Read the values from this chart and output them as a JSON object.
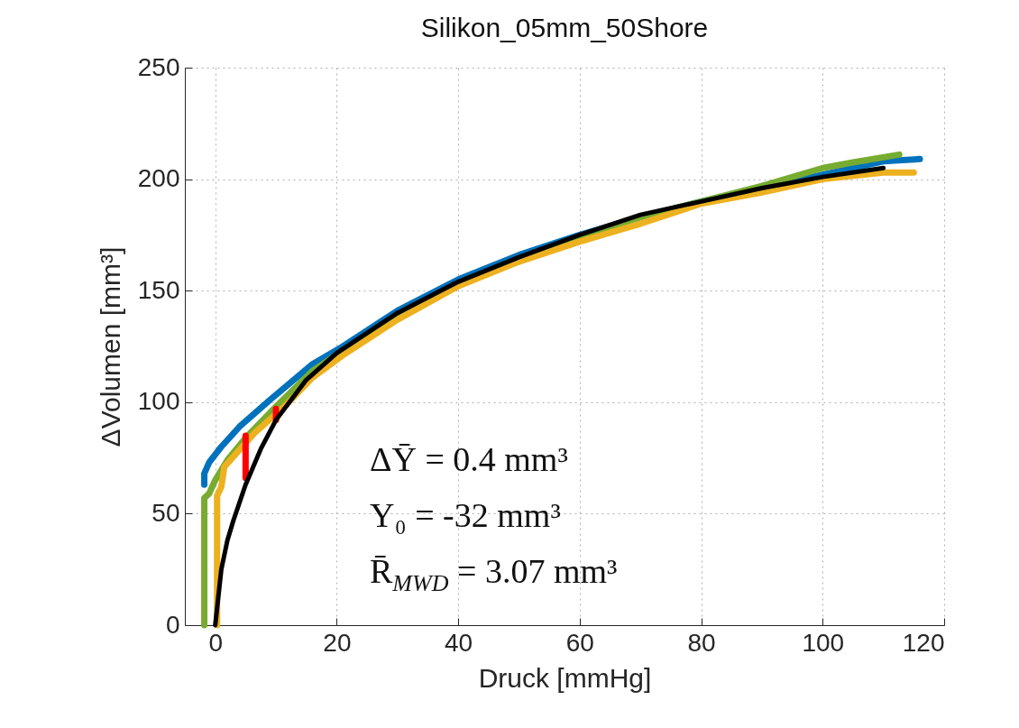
{
  "chart_data": {
    "type": "line",
    "title": "Silikon_05mm_50Shore",
    "xlabel": "Druck [mmHg]",
    "ylabel": "ΔVolumen [mm³]",
    "xlim": [
      -5,
      120
    ],
    "ylim": [
      0,
      250
    ],
    "xticks": [
      0,
      20,
      40,
      60,
      80,
      100,
      120
    ],
    "yticks": [
      0,
      50,
      100,
      150,
      200,
      250
    ],
    "grid": true,
    "line_style": "solid",
    "annotations": [
      "ΔȲ =  0.4 mm³",
      "Y₀ =  -32 mm³",
      "R̄$_{MWD}$ =  3.07 mm³"
    ],
    "series": [
      {
        "color": "#0072bd",
        "x": [
          -1.8,
          -1.8,
          -1,
          1,
          4,
          9,
          16,
          21,
          30,
          40,
          50,
          60,
          70,
          80,
          100,
          110,
          116
        ],
        "values": [
          63,
          68,
          73,
          80,
          89,
          101,
          117,
          125,
          141,
          155,
          166,
          175,
          183,
          190,
          202,
          208,
          209
        ]
      },
      {
        "color": "#77ac30",
        "x": [
          -1.8,
          -1.8,
          -1,
          0,
          2,
          5,
          10,
          16,
          21,
          30,
          40,
          50,
          60,
          70,
          80,
          90,
          100,
          105,
          112.6
        ],
        "values": [
          0,
          57,
          59,
          65,
          74,
          84,
          98,
          114,
          123,
          139,
          153,
          164,
          174,
          183,
          190,
          197,
          205,
          207.5,
          211
        ]
      },
      {
        "color": "#edb120",
        "x": [
          0.3,
          0.3,
          1,
          1.5,
          6.4,
          11.4,
          16,
          21,
          30,
          40,
          50,
          60,
          70,
          80,
          90,
          100,
          110,
          115
        ],
        "values": [
          0,
          58,
          62,
          71,
          86,
          98,
          111,
          121,
          137,
          152,
          163,
          172,
          180,
          189,
          194,
          200,
          203,
          203
        ]
      },
      {
        "color": "#ff0000",
        "x": [
          5,
          5,
          null,
          10,
          10
        ],
        "values": [
          85,
          66,
          null,
          97,
          92
        ]
      },
      {
        "color": "#000000",
        "x": [
          0,
          1,
          2,
          3,
          5,
          7.5,
          10,
          15,
          20,
          30,
          40,
          50,
          60,
          70,
          80,
          90,
          100,
          110
        ],
        "values": [
          0,
          25,
          38,
          47,
          63,
          79,
          92,
          110,
          122,
          140,
          154,
          165,
          175,
          184,
          190,
          196,
          201,
          205
        ]
      }
    ]
  }
}
